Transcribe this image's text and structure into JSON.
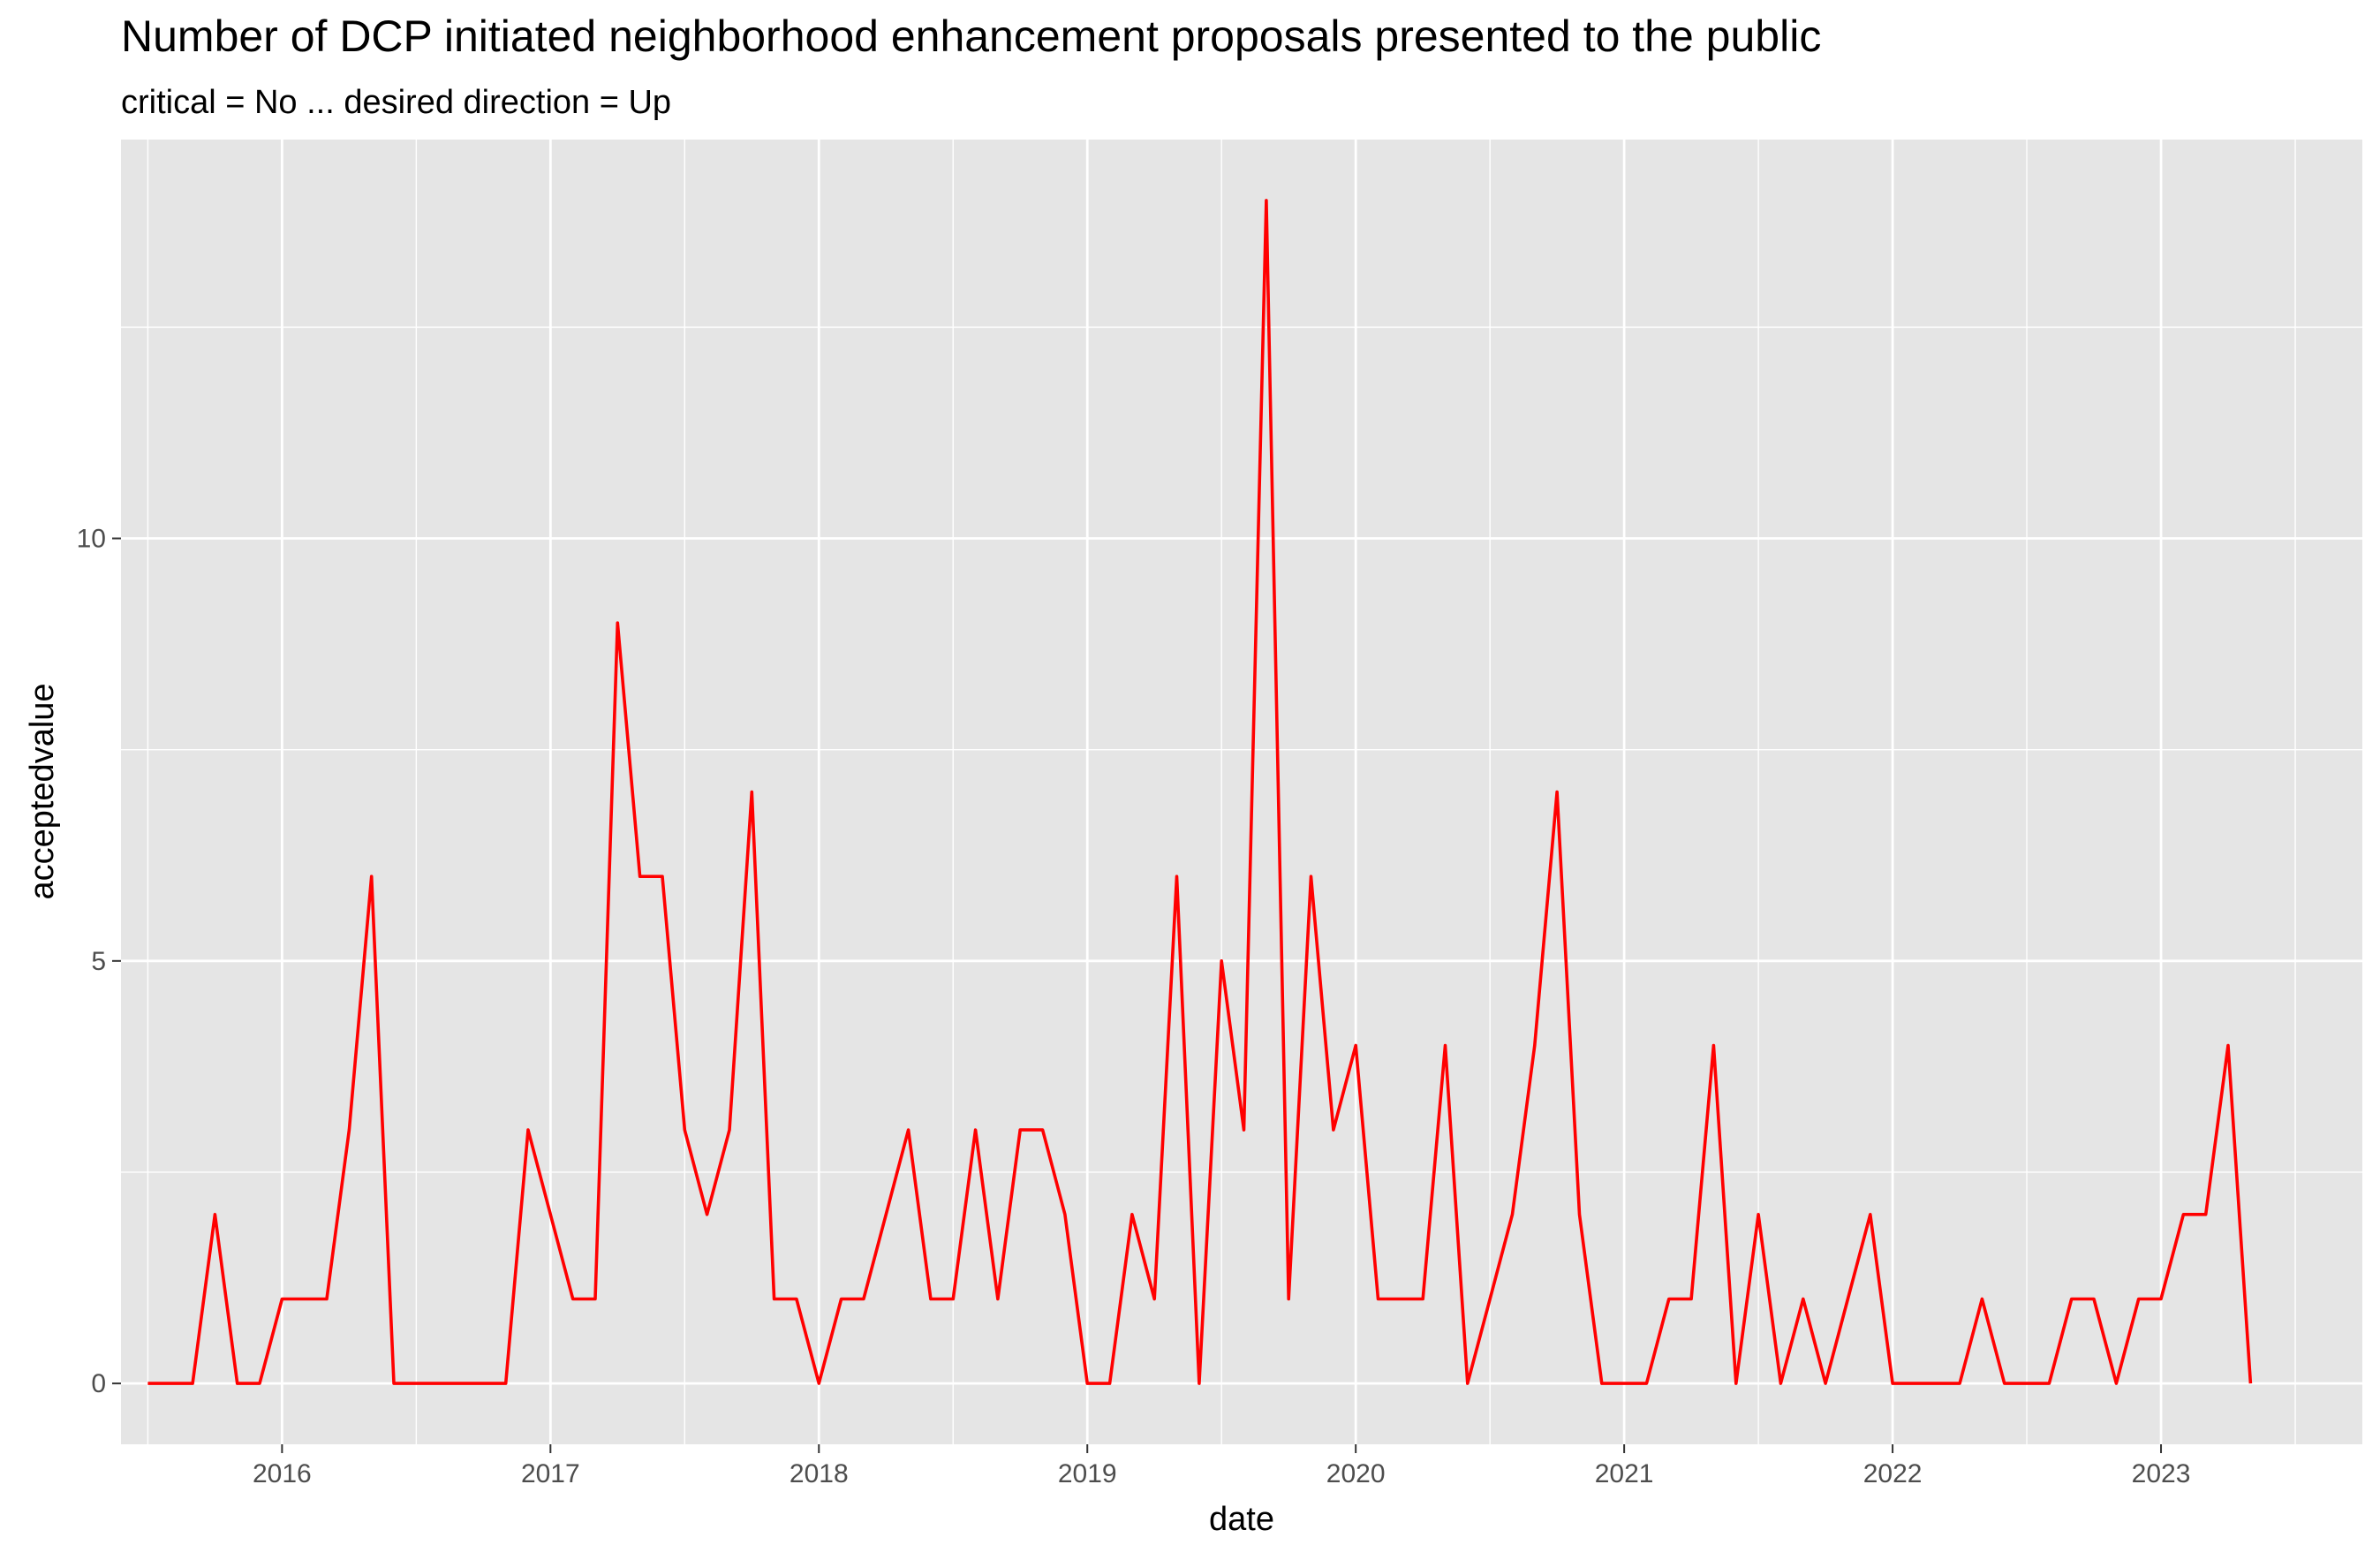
{
  "chart_data": {
    "type": "line",
    "title": "Number of DCP initiated neighborhood enhancement proposals presented to the public",
    "subtitle": "critical = No ... desired direction = Up",
    "xlabel": "date",
    "ylabel": "acceptedvalue",
    "xlim": [
      2015.4,
      2023.75
    ],
    "ylim": [
      -0.72,
      14.72
    ],
    "x_ticks": [
      2016,
      2017,
      2018,
      2019,
      2020,
      2021,
      2022,
      2023
    ],
    "x_tick_labels": [
      "2016",
      "2017",
      "2018",
      "2019",
      "2020",
      "2021",
      "2022",
      "2023"
    ],
    "y_ticks": [
      0,
      5,
      10
    ],
    "y_tick_labels": [
      "0",
      "5",
      "10"
    ],
    "grid": true,
    "colors": {
      "line": "#ff0000",
      "panel": "#e5e5e5",
      "grid": "#ffffff"
    },
    "series": [
      {
        "name": "acceptedvalue",
        "start_year": 2015,
        "start_month": 7,
        "values": [
          0,
          0,
          0,
          2,
          0,
          0,
          1,
          1,
          1,
          3,
          6,
          0,
          0,
          0,
          0,
          0,
          0,
          3,
          2,
          1,
          1,
          9,
          6,
          6,
          3,
          2,
          3,
          7,
          1,
          1,
          0,
          1,
          1,
          2,
          3,
          1,
          1,
          3,
          1,
          3,
          3,
          2,
          0,
          0,
          2,
          1,
          6,
          0,
          5,
          3,
          14,
          1,
          6,
          3,
          4,
          1,
          1,
          1,
          4,
          0,
          1,
          2,
          4,
          7,
          2,
          0,
          0,
          0,
          1,
          1,
          4,
          0,
          2,
          0,
          1,
          0,
          1,
          2,
          0,
          0,
          0,
          0,
          1,
          0,
          0,
          0,
          1,
          1,
          0,
          1,
          1,
          2,
          2,
          4,
          0
        ]
      }
    ]
  }
}
